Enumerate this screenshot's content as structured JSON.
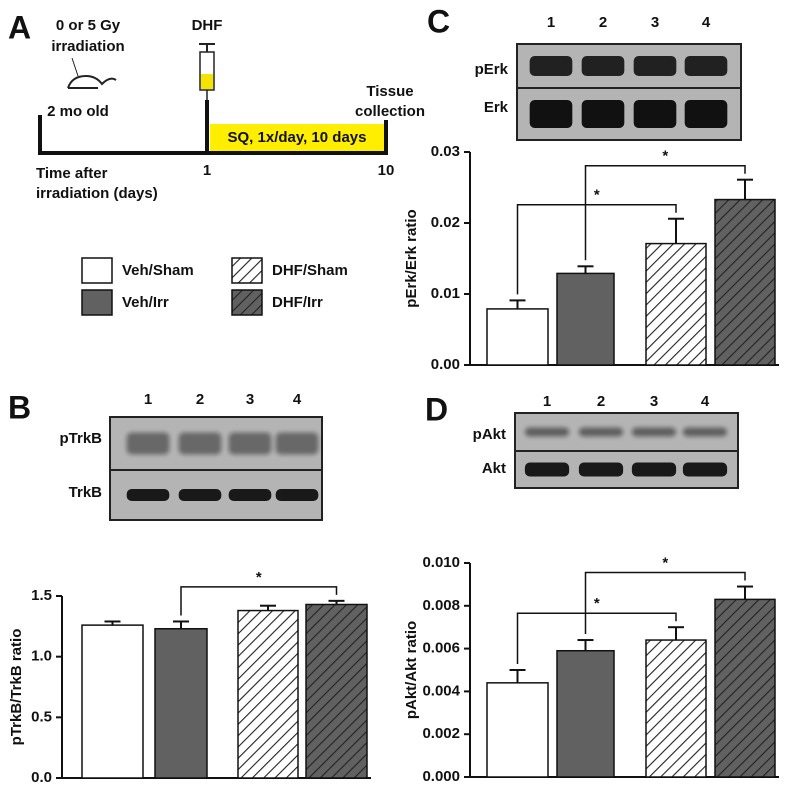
{
  "panel_labels": [
    "A",
    "B",
    "C",
    "D"
  ],
  "timeline": {
    "dose": [
      "0 or 5 Gy",
      "irradiation"
    ],
    "age": "2 mo old",
    "drug": "DHF",
    "end": [
      "Tissue",
      "collection"
    ],
    "regimen": "SQ, 1x/day, 10 days",
    "axis_label": [
      "Time after",
      "irradiation (days)"
    ],
    "day_start": "1",
    "day_end": "10"
  },
  "legend": [
    {
      "name": "Veh/Sham",
      "color": "#ffffff",
      "hatched": false
    },
    {
      "name": "Veh/Irr",
      "color": "#616161",
      "hatched": false
    },
    {
      "name": "DHF/Sham",
      "color": "#ffffff",
      "hatched": true
    },
    {
      "name": "DHF/Irr",
      "color": "#616161",
      "hatched": true
    }
  ],
  "chart_data": [
    {
      "type": "bar",
      "panel": "B",
      "ylabel": "pTrkB/TrkB ratio",
      "blot": {
        "lanes": [
          "1",
          "2",
          "3",
          "4"
        ],
        "rows": [
          "pTrkB",
          "TrkB"
        ]
      },
      "values": [
        1.26,
        1.23,
        1.38,
        1.43
      ],
      "errors": [
        0.03,
        0.06,
        0.04,
        0.03
      ],
      "ylim": [
        0,
        1.5
      ],
      "yticks": [
        {
          "value": 0,
          "label": "0.0"
        },
        0.5,
        {
          "value": 1,
          "label": "1.0"
        },
        1.5
      ],
      "annotations": [
        {
          "text": "*",
          "bars": [
            1,
            3
          ]
        }
      ]
    },
    {
      "type": "bar",
      "panel": "C",
      "ylabel": "pErk/Erk ratio",
      "blot": {
        "lanes": [
          "1",
          "2",
          "3",
          "4"
        ],
        "rows": [
          "pErk",
          "Erk"
        ]
      },
      "values": [
        0.0079,
        0.0129,
        0.0171,
        0.0233
      ],
      "errors": [
        0.0012,
        0.001,
        0.0035,
        0.0028
      ],
      "ylim": [
        0,
        0.03
      ],
      "yticks": [
        {
          "value": 0,
          "label": "0.00"
        },
        {
          "value": 0.01,
          "label": "0.01"
        },
        {
          "value": 0.02,
          "label": "0.02"
        },
        {
          "value": 0.03,
          "label": "0.03"
        }
      ],
      "annotations": [
        {
          "text": "*",
          "bars": [
            0,
            2
          ]
        },
        {
          "text": "*",
          "bars": [
            1,
            3
          ]
        }
      ]
    },
    {
      "type": "bar",
      "panel": "D",
      "ylabel": "pAkt/Akt ratio",
      "blot": {
        "lanes": [
          "1",
          "2",
          "3",
          "4"
        ],
        "rows": [
          "pAkt",
          "Akt"
        ]
      },
      "values": [
        0.0044,
        0.0059,
        0.0064,
        0.0083
      ],
      "errors": [
        0.0006,
        0.0005,
        0.0006,
        0.0006
      ],
      "ylim": [
        0,
        0.01
      ],
      "yticks": [
        {
          "value": 0,
          "label": "0.000"
        },
        {
          "value": 0.002,
          "label": "0.002"
        },
        {
          "value": 0.004,
          "label": "0.004"
        },
        {
          "value": 0.006,
          "label": "0.006"
        },
        {
          "value": 0.008,
          "label": "0.008"
        },
        {
          "value": 0.01,
          "label": "0.010"
        }
      ],
      "annotations": [
        {
          "text": "*",
          "bars": [
            0,
            2
          ]
        },
        {
          "text": "*",
          "bars": [
            1,
            3
          ]
        }
      ]
    }
  ]
}
